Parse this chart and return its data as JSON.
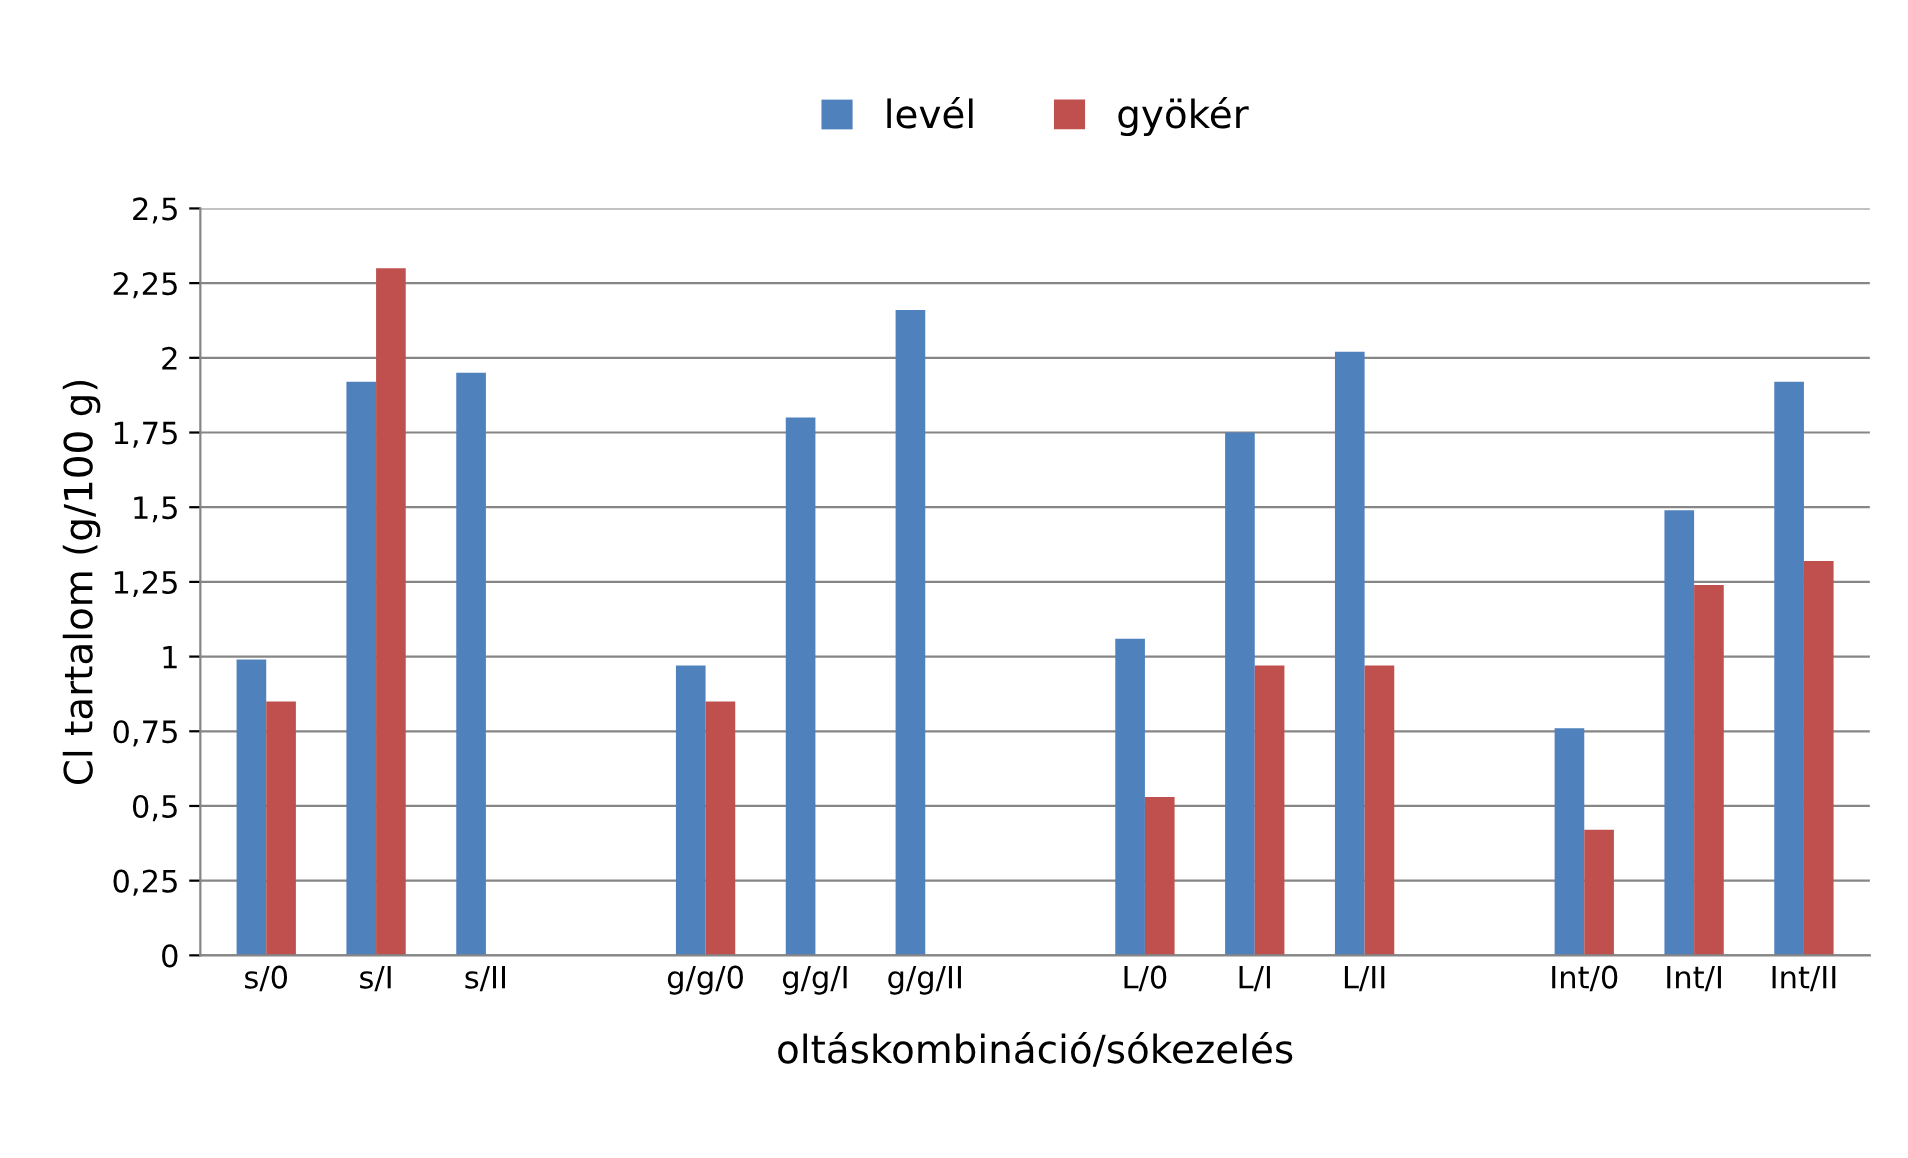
{
  "chart_data": {
    "type": "bar",
    "xlabel": "oltáskombináció/sókezelés",
    "ylabel": "Cl tartalom (g/100 g)",
    "categories": [
      "s/0",
      "s/I",
      "s/II",
      null,
      "g/g/0",
      "g/g/I",
      "g/g/II",
      null,
      "L/0",
      "L/I",
      "L/II",
      null,
      "Int/0",
      "Int/I",
      "Int/II"
    ],
    "series": [
      {
        "name": "levél",
        "color": "#4f81bd",
        "values": [
          0.99,
          1.92,
          1.95,
          null,
          0.97,
          1.8,
          2.16,
          null,
          1.06,
          1.75,
          2.02,
          null,
          0.76,
          1.49,
          1.92
        ]
      },
      {
        "name": "gyökér",
        "color": "#c0504d",
        "values": [
          0.85,
          2.3,
          null,
          null,
          0.85,
          null,
          null,
          null,
          0.53,
          0.97,
          0.97,
          null,
          0.42,
          1.24,
          1.32
        ]
      }
    ],
    "ylim": [
      0,
      2.5
    ],
    "yticks": [
      0,
      {
        "value": 0.25,
        "label": "0,25"
      },
      {
        "value": 0.5,
        "label": "0,5"
      },
      {
        "value": 0.75,
        "label": "0,75"
      },
      1,
      {
        "value": 1.25,
        "label": "1,25"
      },
      {
        "value": 1.5,
        "label": "1,5"
      },
      {
        "value": 1.75,
        "label": "1,75"
      },
      2,
      {
        "value": 2.25,
        "label": "2,25"
      },
      {
        "value": 2.5,
        "label": "2,5"
      }
    ],
    "grid": "y",
    "legend": "top"
  }
}
